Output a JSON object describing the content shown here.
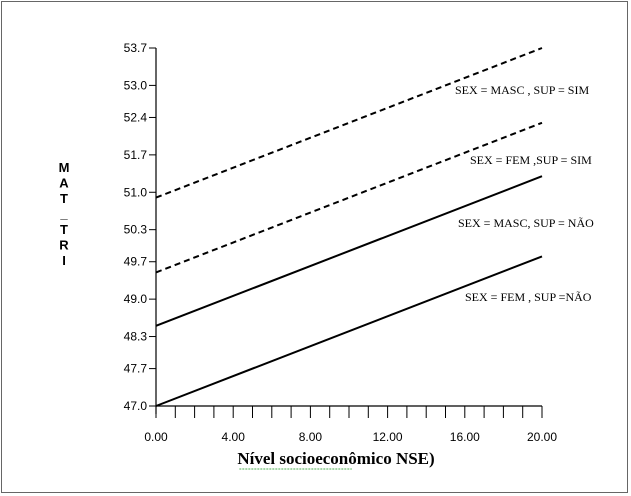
{
  "chart_data": {
    "type": "line",
    "xlabel": "Nível socioeconômico NSE)",
    "ylabel_lines": [
      "M",
      "A",
      "T",
      "_",
      "T",
      "R",
      "I"
    ],
    "xlim": [
      0,
      20
    ],
    "ylim": [
      47.0,
      53.7
    ],
    "x_ticks": [
      0,
      4,
      8,
      12,
      16,
      20
    ],
    "x_tick_labels": [
      "0.00",
      "4.00",
      "8.00",
      "12.00",
      "16.00",
      "20.00"
    ],
    "y_ticks": [
      47.0,
      47.7,
      48.3,
      49.0,
      49.7,
      50.3,
      51.0,
      51.7,
      52.4,
      53.0,
      53.7
    ],
    "y_tick_labels": [
      "47.0",
      "47.7",
      "48.3",
      "49.0",
      "49.7",
      "50.3",
      "51.0",
      "51.7",
      "52.4",
      "53.0",
      "53.7"
    ],
    "x_minor_ticks": 20,
    "grid": false,
    "series": [
      {
        "name": "SEX = MASC , SUP = SIM",
        "x": [
          0,
          20
        ],
        "y": [
          50.9,
          53.7
        ],
        "dashed": true
      },
      {
        "name": "SEX = FEM ,SUP = SIM",
        "x": [
          0,
          20
        ],
        "y": [
          49.5,
          52.3
        ],
        "dashed": true
      },
      {
        "name": "SEX = MASC, SUP = NÃO",
        "x": [
          0,
          20
        ],
        "y": [
          48.5,
          51.3
        ],
        "dashed": false
      },
      {
        "name": "SEX = FEM , SUP =NÃO",
        "x": [
          0,
          20
        ],
        "y": [
          47.0,
          49.8
        ],
        "dashed": false
      }
    ]
  }
}
